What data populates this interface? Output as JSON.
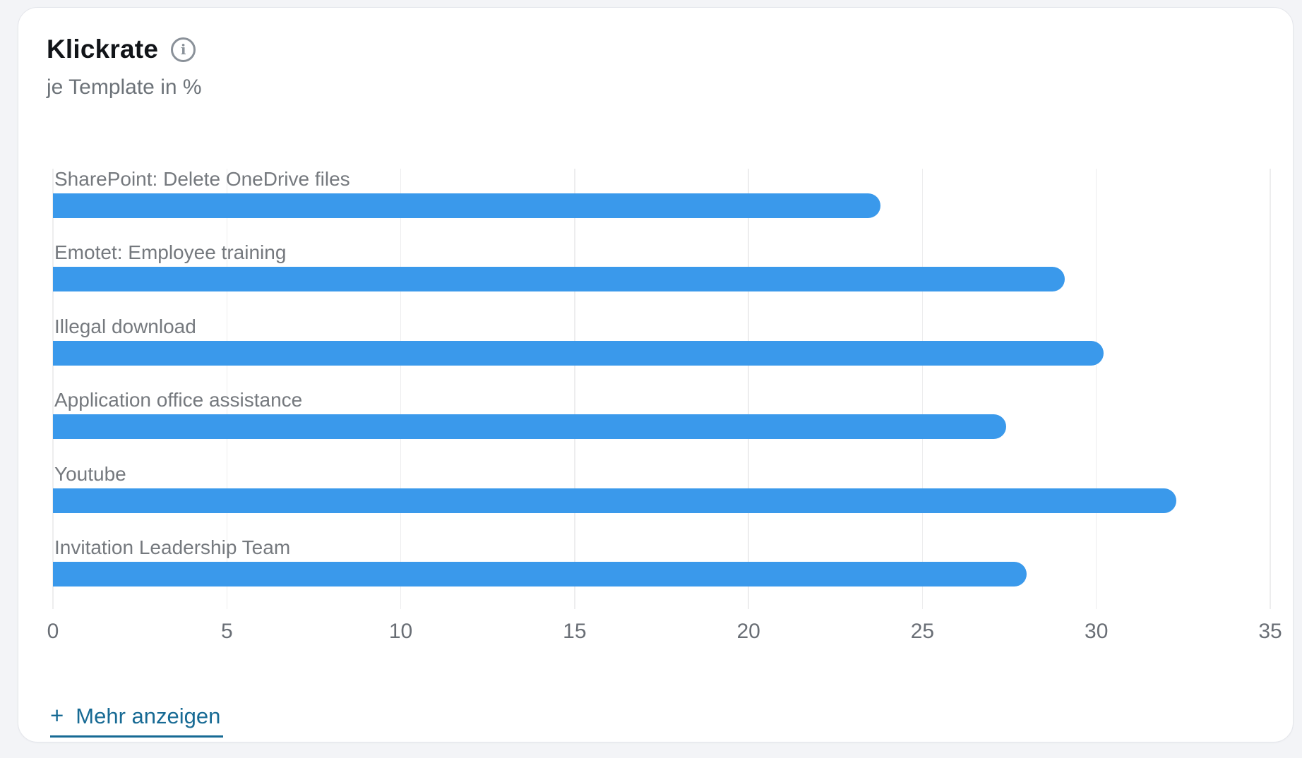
{
  "card": {
    "title": "Klickrate",
    "subtitle": "je Template in %",
    "show_more": {
      "plus": "+",
      "label": "Mehr anzeigen"
    },
    "info_icon_glyph": "i"
  },
  "colors": {
    "bar": "#3a99eb",
    "link": "#176a94",
    "grid": "#ededee",
    "bar_label_text": "#75797e",
    "tick_text": "#696e75",
    "title_text": "#111418",
    "subtitle_text": "#6d7379",
    "card_bg": "#ffffff",
    "page_bg": "#f3f4f7"
  },
  "chart_data": {
    "type": "bar",
    "orientation": "horizontal",
    "title": "Klickrate",
    "subtitle": "je Template in %",
    "unit": "%",
    "categories": [
      "SharePoint: Delete OneDrive files",
      "Emotet: Employee training",
      "Illegal download",
      "Application office assistance",
      "Youtube",
      "Invitation Leadership Team"
    ],
    "values": [
      23.8,
      29.1,
      30.2,
      27.4,
      32.3,
      28.0
    ],
    "xlim": [
      0,
      35
    ],
    "xticks": [
      0,
      5,
      10,
      15,
      20,
      25,
      30,
      35
    ],
    "grid": "vertical",
    "legend": null,
    "xlabel": "",
    "ylabel": ""
  }
}
